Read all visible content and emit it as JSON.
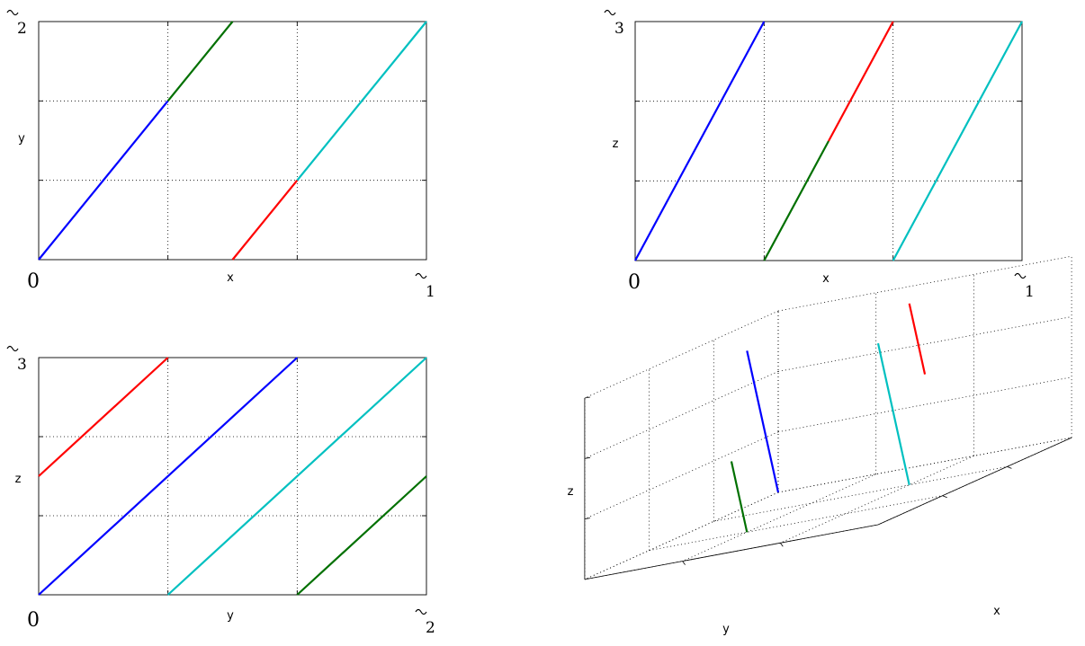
{
  "chart_data": [
    {
      "type": "line",
      "panel": "x-y",
      "xlabel": "x",
      "ylabel": "y",
      "tick_labels": {
        "x_start": "0",
        "x_end_letter": "r",
        "x_end_sub": "1",
        "y_end_letter": "r",
        "y_end_sub": "2"
      },
      "xlim": [
        0,
        3
      ],
      "ylim": [
        0,
        3
      ],
      "grid": true,
      "series": [
        {
          "color": "#0000ff",
          "x": [
            0,
            1
          ],
          "y": [
            0,
            2
          ]
        },
        {
          "color": "#007000",
          "x": [
            1,
            1.5
          ],
          "y": [
            2,
            3
          ]
        },
        {
          "color": "#ff0000",
          "x": [
            1.5,
            2
          ],
          "y": [
            0,
            1
          ]
        },
        {
          "color": "#00c0c0",
          "x": [
            2,
            3
          ],
          "y": [
            1,
            3
          ]
        }
      ]
    },
    {
      "type": "line",
      "panel": "x-z",
      "xlabel": "x",
      "ylabel": "z",
      "tick_labels": {
        "x_start": "0",
        "x_end_letter": "r",
        "x_end_sub": "1",
        "y_end_letter": "r",
        "y_end_sub": "3"
      },
      "xlim": [
        0,
        3
      ],
      "ylim": [
        0,
        3
      ],
      "grid": true,
      "series": [
        {
          "color": "#0000ff",
          "x": [
            0,
            1
          ],
          "y": [
            0,
            3
          ]
        },
        {
          "color": "#007000",
          "x": [
            1,
            1.5
          ],
          "y": [
            0,
            1.5
          ]
        },
        {
          "color": "#ff0000",
          "x": [
            1.5,
            2
          ],
          "y": [
            1.5,
            3
          ]
        },
        {
          "color": "#00c0c0",
          "x": [
            2,
            3
          ],
          "y": [
            0,
            3
          ]
        }
      ]
    },
    {
      "type": "line",
      "panel": "y-z",
      "xlabel": "y",
      "ylabel": "z",
      "tick_labels": {
        "x_start": "0",
        "x_end_letter": "r",
        "x_end_sub": "2",
        "y_end_letter": "r",
        "y_end_sub": "3"
      },
      "xlim": [
        0,
        3
      ],
      "ylim": [
        0,
        3
      ],
      "grid": true,
      "series": [
        {
          "color": "#ff0000",
          "x": [
            0,
            1
          ],
          "y": [
            1.5,
            3
          ]
        },
        {
          "color": "#0000ff",
          "x": [
            0,
            2
          ],
          "y": [
            0,
            3
          ]
        },
        {
          "color": "#00c0c0",
          "x": [
            1,
            3
          ],
          "y": [
            0,
            3
          ]
        },
        {
          "color": "#007000",
          "x": [
            2,
            3
          ],
          "y": [
            0,
            1.5
          ]
        }
      ]
    },
    {
      "type": "line3d",
      "panel": "xyz",
      "xlabel": "x",
      "ylabel": "y",
      "zlabel": "z",
      "grid": true,
      "series": [
        {
          "color": "#ff0000",
          "x": [
            1.5,
            2
          ],
          "y": [
            0,
            1
          ],
          "z": [
            1.5,
            3
          ]
        },
        {
          "color": "#0000ff",
          "x": [
            0,
            1
          ],
          "y": [
            0,
            2
          ],
          "z": [
            0,
            3
          ]
        },
        {
          "color": "#00c0c0",
          "x": [
            2,
            3
          ],
          "y": [
            1,
            3
          ],
          "z": [
            0,
            3
          ]
        },
        {
          "color": "#007000",
          "x": [
            1,
            1.5
          ],
          "y": [
            2,
            3
          ],
          "z": [
            0,
            1.5
          ]
        }
      ]
    }
  ]
}
